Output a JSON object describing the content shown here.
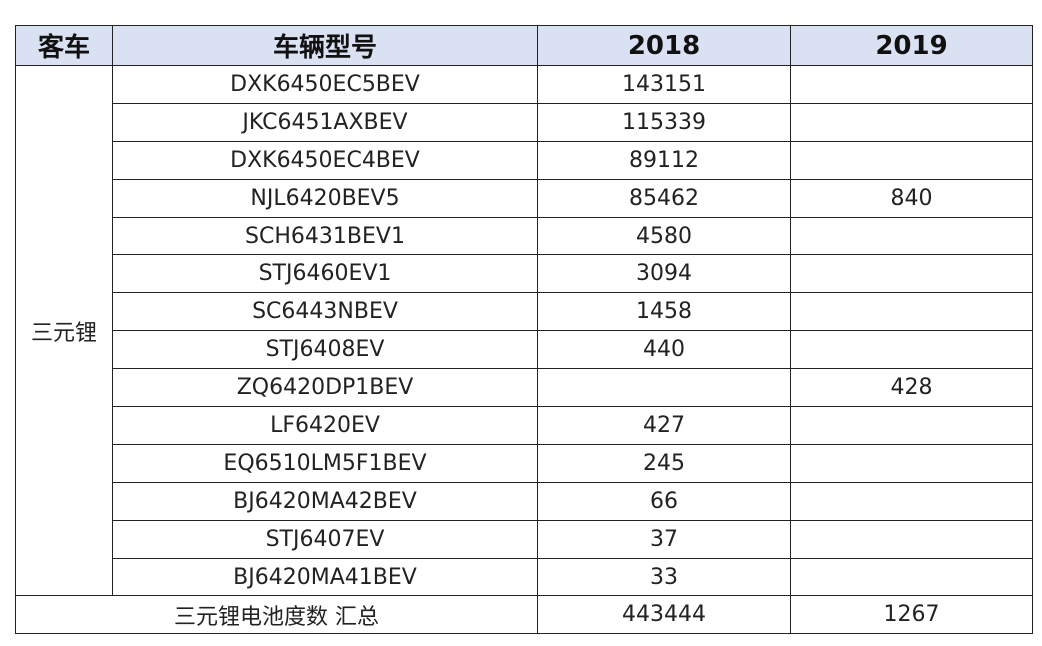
{
  "table": {
    "header": [
      "客车",
      "车辆型号",
      "2018",
      "2019"
    ],
    "group": "三元锂",
    "rows": [
      [
        "DXK6450EC5BEV",
        143151,
        null
      ],
      [
        "JKC6451AXBEV",
        115339,
        null
      ],
      [
        "DXK6450EC4BEV",
        89112,
        null
      ],
      [
        "NJL6420BEV5",
        85462,
        840
      ],
      [
        "SCH6431BEV1",
        4580,
        null
      ],
      [
        "STJ6460EV1",
        3094,
        null
      ],
      [
        "SC6443NBEV",
        1458,
        null
      ],
      [
        "STJ6408EV",
        440,
        null
      ],
      [
        "ZQ6420DP1BEV",
        null,
        428
      ],
      [
        "LF6420EV",
        427,
        null
      ],
      [
        "EQ6510LM5F1BEV",
        245,
        null
      ],
      [
        "BJ6420MA42BEV",
        66,
        null
      ],
      [
        "STJ6407EV",
        37,
        null
      ],
      [
        "BJ6420MA41BEV",
        33,
        null
      ]
    ],
    "total": [
      "三元锂电池度数 汇总",
      443444,
      1267
    ]
  }
}
